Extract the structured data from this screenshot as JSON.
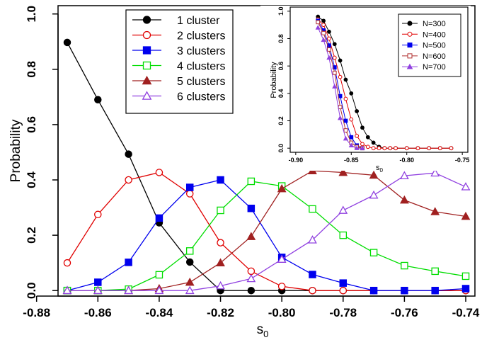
{
  "chart_data": [
    {
      "type": "line",
      "title": "",
      "xlabel": "s",
      "xlabel_sub": "0",
      "ylabel": "Probability",
      "xlim": [
        -0.873,
        -0.737
      ],
      "ylim": [
        -0.02,
        1.03
      ],
      "grid": false,
      "legend_position": "top-center",
      "x_ticks": [
        -0.88,
        -0.86,
        -0.84,
        -0.82,
        -0.8,
        -0.78,
        -0.76,
        -0.74
      ],
      "x_tick_labels": [
        "-0.88",
        "-0.86",
        "-0.84",
        "-0.82",
        "-0.80",
        "-0.78",
        "-0.76",
        "-0.74"
      ],
      "y_ticks": [
        0,
        0.2,
        0.4,
        0.6,
        0.8,
        1
      ],
      "y_tick_labels": [
        "0.0",
        "0.2",
        "0.4",
        "0.6",
        "0.8",
        "1.0"
      ],
      "x": [
        -0.87,
        -0.86,
        -0.85,
        -0.84,
        -0.83,
        -0.82,
        -0.81,
        -0.8,
        -0.79,
        -0.78,
        -0.77,
        -0.76,
        -0.75,
        -0.74
      ],
      "series": [
        {
          "name": "1 cluster",
          "color": "#000000",
          "marker": "filled-circle",
          "values": [
            0.897,
            0.69,
            0.493,
            0.245,
            0.103,
            0.0,
            0.0,
            0.0,
            0.0,
            0.0,
            0.0,
            0.0,
            0.0,
            0.0
          ]
        },
        {
          "name": "2 clusters",
          "color": "#e00000",
          "marker": "open-circle",
          "values": [
            0.1,
            0.275,
            0.4,
            0.427,
            0.35,
            0.173,
            0.07,
            0.015,
            0.0,
            0.0,
            0.0,
            0.0,
            0.0,
            0.0
          ]
        },
        {
          "name": "3 clusters",
          "color": "#0000ee",
          "marker": "filled-square",
          "values": [
            0.0,
            0.03,
            0.102,
            0.262,
            0.373,
            0.4,
            0.297,
            0.12,
            0.058,
            0.027,
            0.0,
            0.0,
            0.0,
            0.007
          ]
        },
        {
          "name": "4 clusters",
          "color": "#00dd00",
          "marker": "open-square",
          "values": [
            0.0,
            0.0,
            0.005,
            0.057,
            0.143,
            0.29,
            0.395,
            0.378,
            0.295,
            0.2,
            0.137,
            0.09,
            0.07,
            0.052
          ]
        },
        {
          "name": "5 clusters",
          "color": "#a02020",
          "marker": "filled-triangle",
          "values": [
            0.0,
            0.0,
            0.0,
            0.007,
            0.03,
            0.1,
            0.195,
            0.368,
            0.433,
            0.427,
            0.417,
            0.327,
            0.285,
            0.268
          ]
        },
        {
          "name": "6 clusters",
          "color": "#9040e0",
          "marker": "open-triangle",
          "values": [
            0.0,
            0.0,
            0.0,
            0.0,
            0.0,
            0.017,
            0.043,
            0.113,
            0.183,
            0.29,
            0.345,
            0.415,
            0.425,
            0.375
          ]
        }
      ]
    },
    {
      "type": "line",
      "title": "",
      "xlabel": "s",
      "xlabel_sub": "0",
      "ylabel": "Probability",
      "xlim": [
        -0.905,
        -0.745
      ],
      "ylim": [
        -0.03,
        1.03
      ],
      "grid": false,
      "legend_position": "top-right",
      "x_ticks": [
        -0.9,
        -0.85,
        -0.8,
        -0.75
      ],
      "x_tick_labels": [
        "-0.90",
        "-0.85",
        "-0.80",
        "-0.75"
      ],
      "y_ticks": [
        0,
        0.2,
        0.4,
        0.6,
        0.8,
        1
      ],
      "y_tick_labels": [
        "0.0",
        "0.2",
        "0.4",
        "0.6",
        "0.8",
        "1.0"
      ],
      "series": [
        {
          "name": "N=300",
          "color": "#000000",
          "marker": "filled-circle",
          "x": [
            -0.88,
            -0.875,
            -0.87,
            -0.865,
            -0.86,
            -0.855,
            -0.85,
            -0.845,
            -0.84,
            -0.835,
            -0.83,
            -0.825,
            -0.82,
            -0.815,
            -0.81,
            -0.8,
            -0.79,
            -0.78,
            -0.77,
            -0.76
          ],
          "values": [
            0.96,
            0.93,
            0.85,
            0.76,
            0.64,
            0.5,
            0.4,
            0.27,
            0.15,
            0.08,
            0.04,
            0.01,
            0.0,
            0.0,
            0.0,
            0.0,
            0.0,
            0.0,
            0.0,
            0.0
          ]
        },
        {
          "name": "N=400",
          "color": "#e00000",
          "marker": "open-circle",
          "x": [
            -0.88,
            -0.875,
            -0.87,
            -0.865,
            -0.86,
            -0.855,
            -0.85,
            -0.845,
            -0.84,
            -0.835,
            -0.83,
            -0.825,
            -0.82,
            -0.815,
            -0.81,
            -0.8,
            -0.79,
            -0.78,
            -0.77,
            -0.76
          ],
          "values": [
            0.94,
            0.9,
            0.8,
            0.66,
            0.52,
            0.36,
            0.21,
            0.09,
            0.03,
            0.01,
            0.0,
            0.0,
            0.0,
            0.0,
            0.0,
            0.0,
            0.0,
            0.0,
            0.0,
            0.0
          ]
        },
        {
          "name": "N=500",
          "color": "#0000ee",
          "marker": "filled-square",
          "x": [
            -0.88,
            -0.875,
            -0.87,
            -0.865,
            -0.86,
            -0.855,
            -0.85,
            -0.845,
            -0.84
          ],
          "values": [
            0.93,
            0.86,
            0.75,
            0.59,
            0.38,
            0.2,
            0.08,
            0.02,
            0.0
          ]
        },
        {
          "name": "N=600",
          "color": "#b03030",
          "marker": "open-square",
          "x": [
            -0.88,
            -0.875,
            -0.87,
            -0.865,
            -0.86,
            -0.855,
            -0.85,
            -0.845,
            -0.84
          ],
          "values": [
            0.92,
            0.84,
            0.72,
            0.55,
            0.3,
            0.13,
            0.04,
            0.01,
            0.0
          ]
        },
        {
          "name": "N=700",
          "color": "#9040e0",
          "marker": "filled-triangle",
          "x": [
            -0.88,
            -0.875,
            -0.87,
            -0.865,
            -0.86,
            -0.855,
            -0.85,
            -0.845,
            -0.84
          ],
          "values": [
            0.88,
            0.79,
            0.66,
            0.45,
            0.22,
            0.07,
            0.02,
            0.0,
            0.0
          ]
        }
      ]
    }
  ]
}
